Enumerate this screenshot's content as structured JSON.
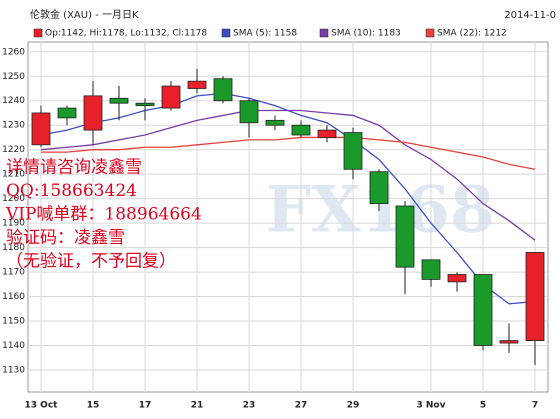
{
  "chart_data": {
    "type": "candlestick",
    "title": "伦敦金 (XAU) - 一月日K",
    "date": "2014-11-0",
    "ohlc_label": "Op:1142, Hi:1178, Lo:1132, Cl:1178",
    "categories": [
      "13 Oct",
      null,
      "15",
      null,
      "17",
      null,
      "21",
      null,
      "23",
      null,
      "27",
      null,
      "29",
      null,
      null,
      "3 Nov",
      null,
      "5",
      null,
      "7"
    ],
    "open": [
      1222,
      1237,
      1228,
      1241,
      1239,
      1237,
      1245,
      1249,
      1240,
      1232,
      1230,
      1225,
      1227,
      1211,
      1197,
      1175,
      1166,
      1169,
      1141,
      1142
    ],
    "high": [
      1238,
      1238,
      1248,
      1246,
      1241,
      1248,
      1253,
      1250,
      1241,
      1234,
      1232,
      1230,
      1229,
      1212,
      1199,
      1175,
      1170,
      1169,
      1149,
      1178
    ],
    "low": [
      1221,
      1230,
      1222,
      1232,
      1232,
      1236,
      1243,
      1239,
      1225,
      1228,
      1225,
      1223,
      1208,
      1195,
      1161,
      1164,
      1162,
      1138,
      1137,
      1132
    ],
    "close": [
      1235,
      1233,
      1242,
      1239,
      1238,
      1246,
      1248,
      1240,
      1231,
      1230,
      1226,
      1228,
      1212,
      1198,
      1172,
      1167,
      1169,
      1140,
      1142,
      1178
    ],
    "up_color": "#e8202a",
    "down_color": "#1a9a2a",
    "series": [
      {
        "name": "SMA (5): 1158",
        "color": "#3a4fc4",
        "values": [
          1226,
          1228,
          1231,
          1233,
          1236,
          1238,
          1242,
          1243,
          1241,
          1238,
          1234,
          1231,
          1224,
          1216,
          1204,
          1190,
          1178,
          1165,
          1157,
          1158
        ]
      },
      {
        "name": "SMA (10): 1183",
        "color": "#7a3aa8",
        "values": [
          1220,
          1221,
          1222,
          1224,
          1226,
          1229,
          1232,
          1234,
          1236,
          1236,
          1236,
          1235,
          1234,
          1230,
          1222,
          1216,
          1208,
          1198,
          1191,
          1183
        ]
      },
      {
        "name": "SMA (22): 1212",
        "color": "#e8403a",
        "values": [
          1219,
          1219,
          1220,
          1220,
          1221,
          1221,
          1222,
          1223,
          1224,
          1224,
          1225,
          1225,
          1225,
          1224,
          1223,
          1221,
          1219,
          1217,
          1214,
          1212
        ]
      }
    ],
    "ylim": [
      1121,
      1264
    ],
    "yticks": [
      1130,
      1140,
      1150,
      1160,
      1170,
      1180,
      1190,
      1200,
      1210,
      1220,
      1230,
      1240,
      1250,
      1260
    ],
    "grid": true,
    "watermark": "FX168",
    "annotations": [
      "详情请咨询凌鑫雪",
      "QQ:158663424",
      "VIP喊单群：188964664",
      "验证码：凌鑫雪",
      "（无验证，不予回复）"
    ]
  }
}
